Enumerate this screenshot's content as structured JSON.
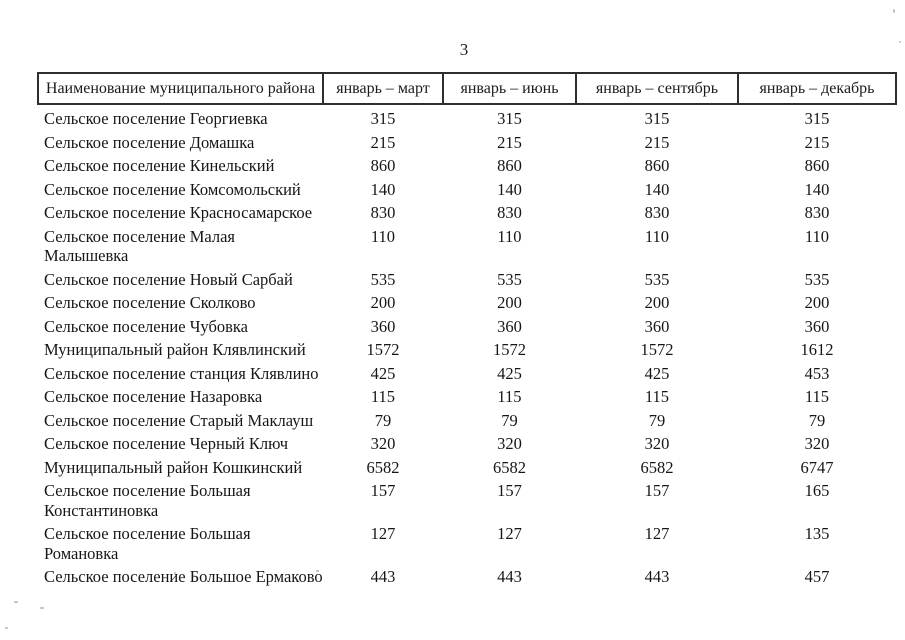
{
  "page": {
    "number": "3"
  },
  "table": {
    "headers": [
      "Наименование муниципального района",
      "январь – март",
      "январь – июнь",
      "январь – сентябрь",
      "январь – декабрь"
    ],
    "rows": [
      {
        "name": "Сельское поселение Георгиевка",
        "values": [
          "315",
          "315",
          "315",
          "315"
        ]
      },
      {
        "name": "Сельское поселение Домашка",
        "values": [
          "215",
          "215",
          "215",
          "215"
        ]
      },
      {
        "name": "Сельское поселение Кинельский",
        "values": [
          "860",
          "860",
          "860",
          "860"
        ]
      },
      {
        "name": "Сельское поселение Комсомольский",
        "values": [
          "140",
          "140",
          "140",
          "140"
        ]
      },
      {
        "name": "Сельское поселение Красносамарское",
        "values": [
          "830",
          "830",
          "830",
          "830"
        ]
      },
      {
        "name": "Сельское поселение Малая Малышевка",
        "values": [
          "110",
          "110",
          "110",
          "110"
        ]
      },
      {
        "name": "Сельское поселение Новый Сарбай",
        "values": [
          "535",
          "535",
          "535",
          "535"
        ]
      },
      {
        "name": "Сельское поселение Сколково",
        "values": [
          "200",
          "200",
          "200",
          "200"
        ]
      },
      {
        "name": "Сельское поселение Чубовка",
        "values": [
          "360",
          "360",
          "360",
          "360"
        ]
      },
      {
        "name": "Муниципальный район Клявлинский",
        "values": [
          "1572",
          "1572",
          "1572",
          "1612"
        ]
      },
      {
        "name": "Сельское поселение станция Клявлино",
        "values": [
          "425",
          "425",
          "425",
          "453"
        ]
      },
      {
        "name": "Сельское поселение Назаровка",
        "values": [
          "115",
          "115",
          "115",
          "115"
        ]
      },
      {
        "name": "Сельское поселение Старый Маклауш",
        "values": [
          "79",
          "79",
          "79",
          "79"
        ]
      },
      {
        "name": "Сельское поселение Черный Ключ",
        "values": [
          "320",
          "320",
          "320",
          "320"
        ]
      },
      {
        "name": "Муниципальный район Кошкинский",
        "values": [
          "6582",
          "6582",
          "6582",
          "6747"
        ]
      },
      {
        "name": "Сельское поселение Большая\nКонстантиновка",
        "values": [
          "157",
          "157",
          "157",
          "165"
        ]
      },
      {
        "name": "Сельское поселение Большая\nРомановка",
        "values": [
          "127",
          "127",
          "127",
          "135"
        ]
      },
      {
        "name": "Сельское поселение Большое Ермаково",
        "values": [
          "443",
          "443",
          "443",
          "457"
        ]
      }
    ]
  }
}
